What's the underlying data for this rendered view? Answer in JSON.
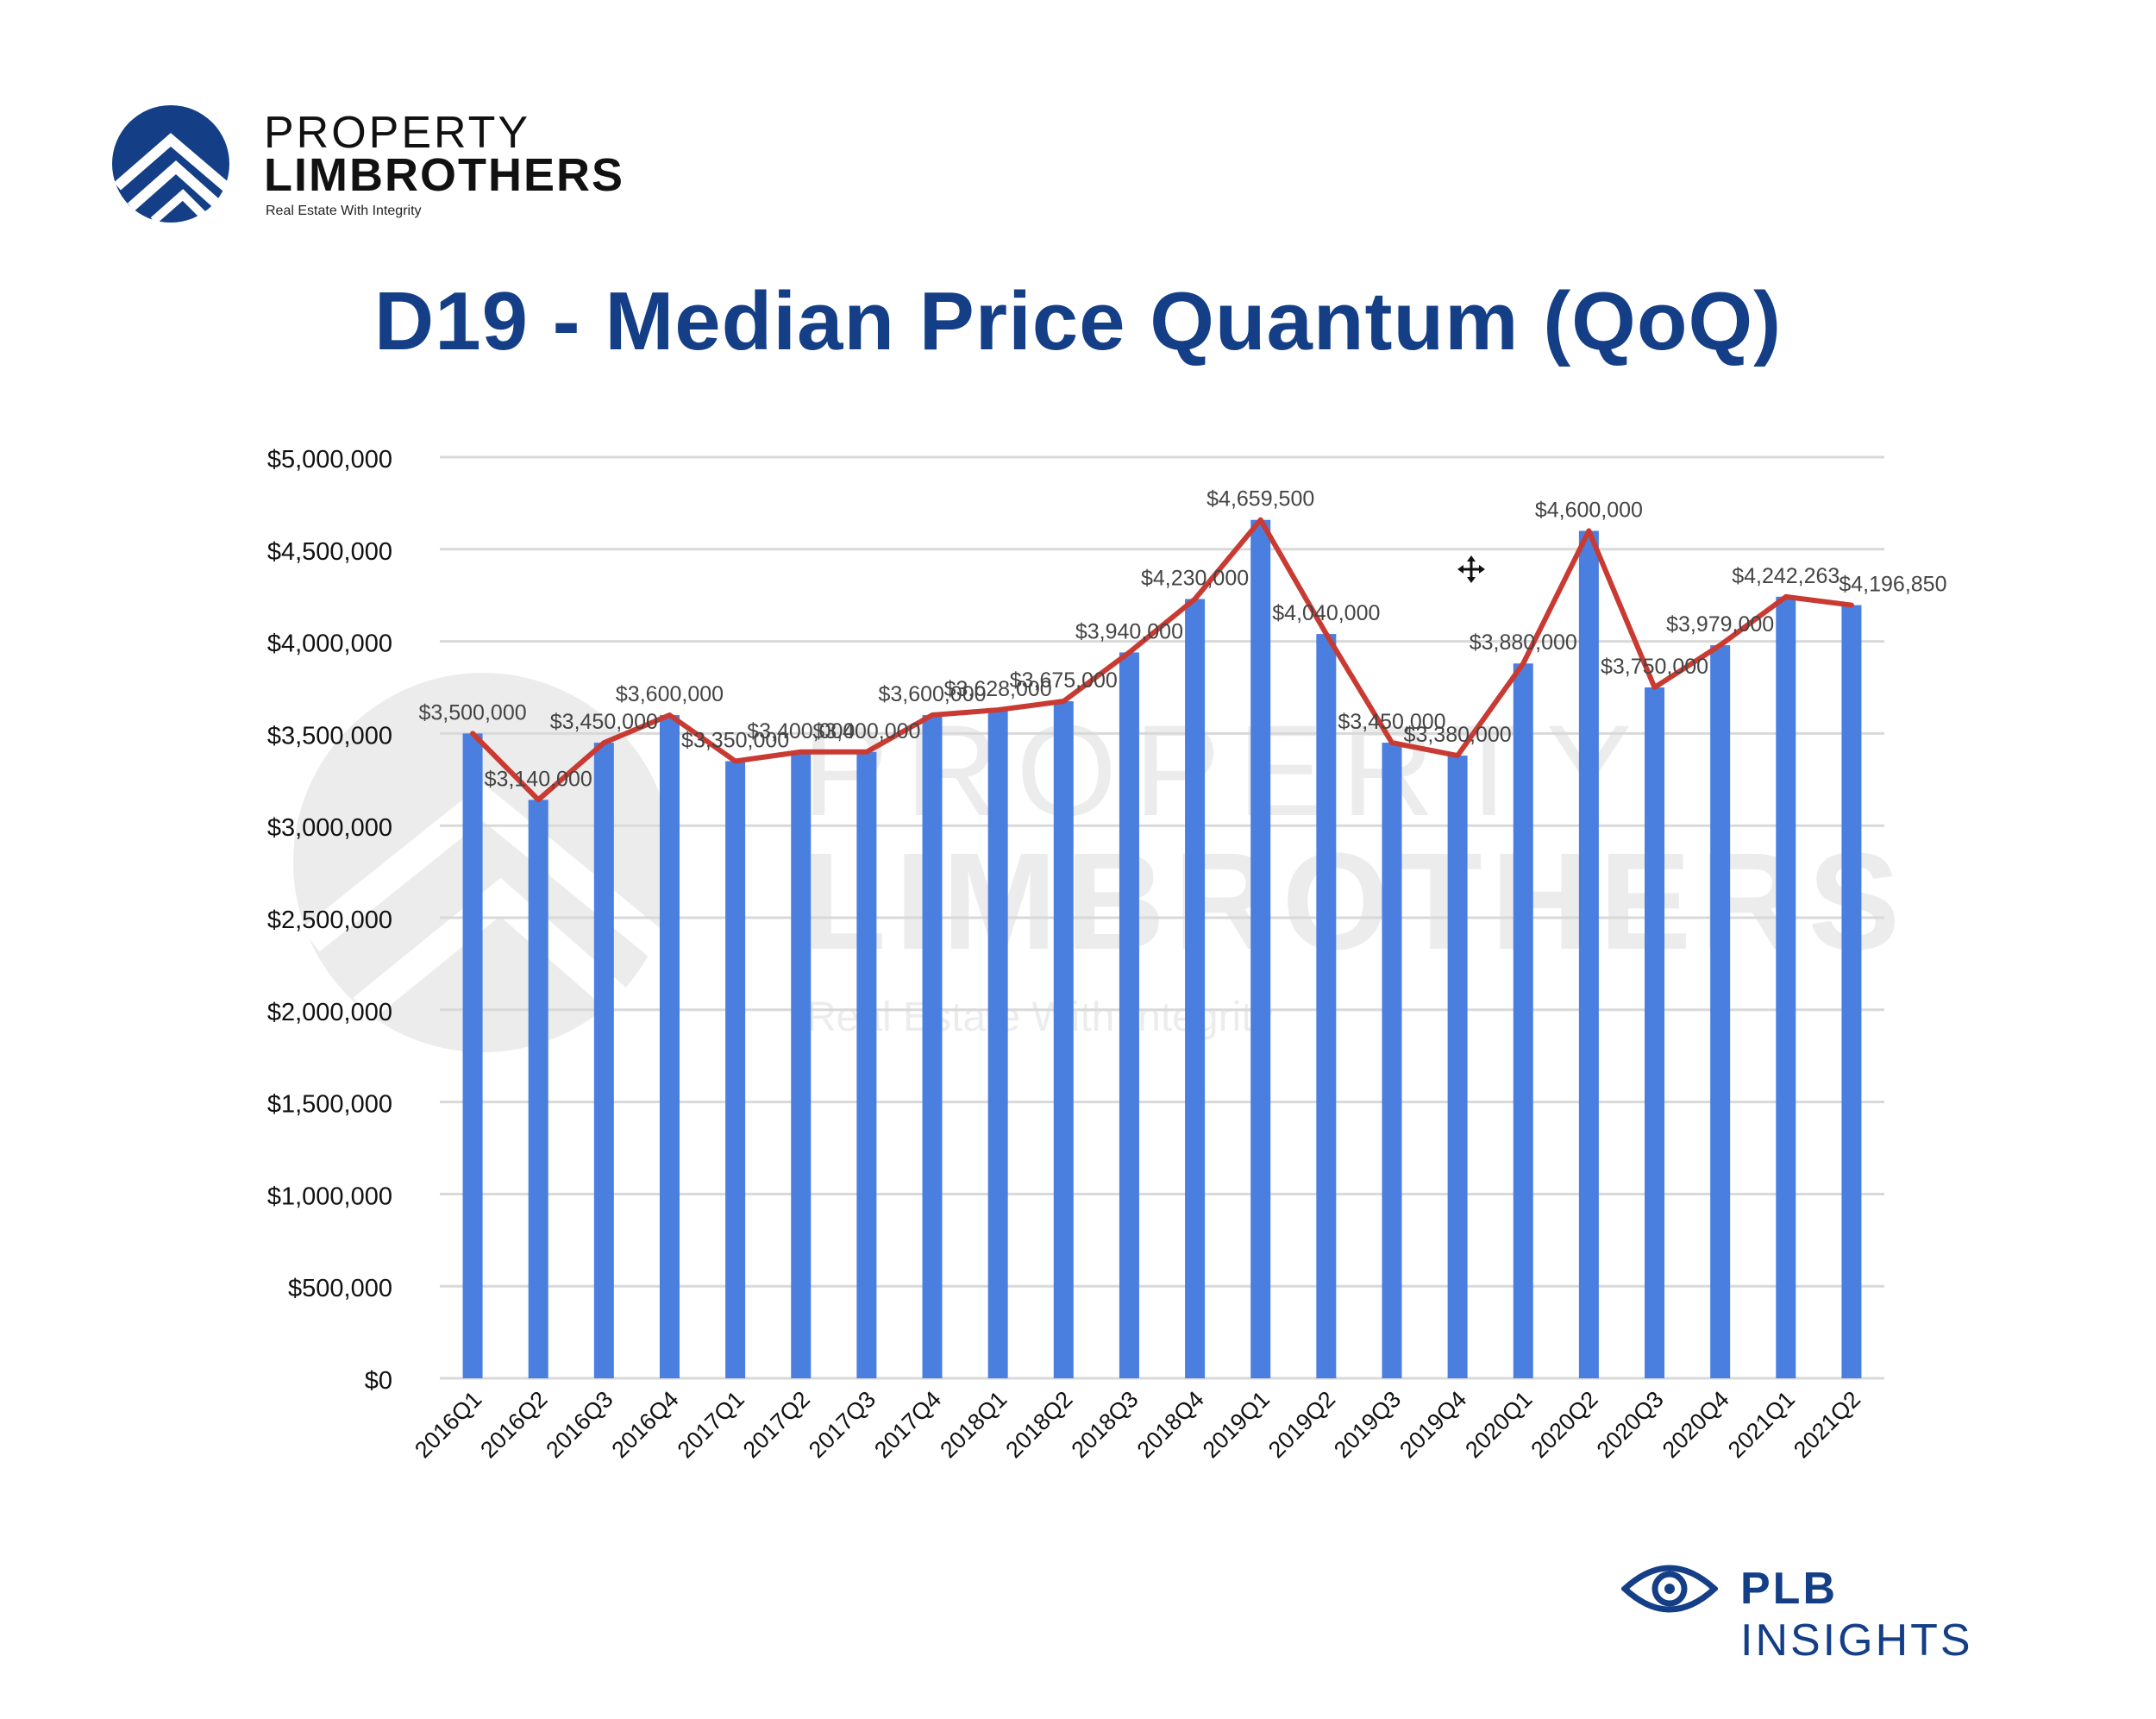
{
  "logo": {
    "line1": "PROPERTY",
    "line2": "LIMBROTHERS",
    "tagline": "Real Estate With Integrity",
    "icon": "property-limbrothers-logo-mark",
    "color": "#143f87"
  },
  "watermark": {
    "line1": "PROPERTY",
    "line2": "LIMBROTHERS",
    "tagline": "Real Estate With Integrity"
  },
  "footer": {
    "brand_bold": "PLB",
    "brand_rest": "INSIGHTS",
    "icon": "eye-icon",
    "color": "#143f87"
  },
  "chart_data": {
    "type": "bar",
    "overlay": "line",
    "title": "D19 - Median Price Quantum (QoQ)",
    "xlabel": "",
    "ylabel": "",
    "ylim": [
      0,
      5000000
    ],
    "yticks": [
      "$0",
      "$500,000",
      "$1,000,000",
      "$1,500,000",
      "$2,000,000",
      "$2,500,000",
      "$3,000,000",
      "$3,500,000",
      "$4,000,000",
      "$4,500,000",
      "$5,000,000"
    ],
    "grid": true,
    "categories": [
      "2016Q1",
      "2016Q2",
      "2016Q3",
      "2016Q4",
      "2017Q1",
      "2017Q2",
      "2017Q3",
      "2017Q4",
      "2018Q1",
      "2018Q2",
      "2018Q3",
      "2018Q4",
      "2019Q1",
      "2019Q2",
      "2019Q3",
      "2019Q4",
      "2020Q1",
      "2020Q2",
      "2020Q3",
      "2020Q4",
      "2021Q1",
      "2021Q2"
    ],
    "values": [
      3500000,
      3140000,
      3450000,
      3600000,
      3350000,
      3400000,
      3400000,
      3600000,
      3628000,
      3675000,
      3940000,
      4230000,
      4659500,
      4040000,
      3450000,
      3380000,
      3880000,
      4600000,
      3750000,
      3979000,
      4242263,
      4196850
    ],
    "data_labels": [
      "$3,500,000",
      "$3,140,000",
      "$3,450,000",
      "$3,600,000",
      "$3,350,000",
      "$3,400,000",
      "$3,400,000",
      "$3,600,000",
      "$3,628,000",
      "$3,675,000",
      "$3,940,000",
      "$4,230,000",
      "$4,659,500",
      "$4,040,000",
      "$3,450,000",
      "$3,380,000",
      "$3,880,000",
      "$4,600,000",
      "$3,750,000",
      "$3,979,000",
      "$4,242,263",
      "$4,196,850"
    ],
    "colors": {
      "bar": "#4a7fe0",
      "line": "#c93b32",
      "grid": "#d9d9d9",
      "title": "#143f87"
    }
  }
}
